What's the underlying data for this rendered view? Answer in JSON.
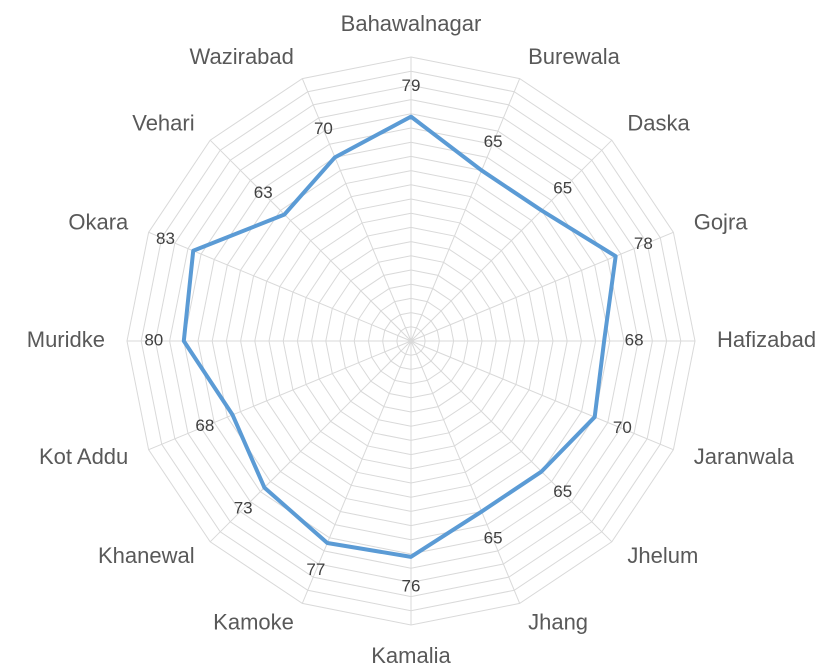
{
  "chart_data": {
    "type": "radar",
    "categories": [
      "Bahawalnagar",
      "Burewala",
      "Daska",
      "Gojra",
      "Hafizabad",
      "Jaranwala",
      "Jhelum",
      "Jhang",
      "Kamalia",
      "Kamoke",
      "Khanewal",
      "Kot Addu",
      "Muridke",
      "Okara",
      "Vehari",
      "Wazirabad"
    ],
    "values": [
      79,
      65,
      65,
      78,
      68,
      70,
      65,
      65,
      76,
      77,
      73,
      68,
      80,
      83,
      63,
      70
    ],
    "color": "#5b9bd5",
    "ylim": [
      0,
      100
    ],
    "yticks": [
      0,
      5,
      10,
      15,
      20,
      25,
      30,
      35,
      40,
      45,
      50,
      55,
      60,
      65,
      70,
      75,
      80,
      85,
      90,
      95,
      100
    ],
    "grid": true
  }
}
